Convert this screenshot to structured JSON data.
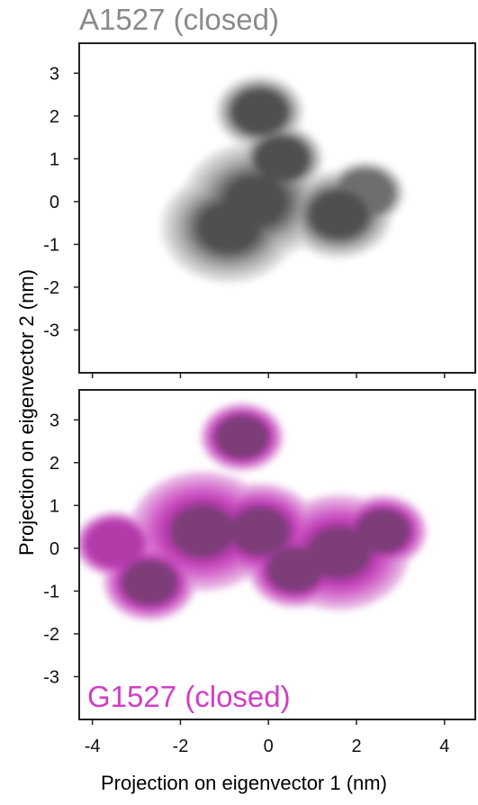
{
  "chart_data": [
    {
      "type": "contour",
      "title": "A1527 (closed)",
      "title_color": "#8a8a8a",
      "xlabel": "Projection on eigenvector 1 (nm)",
      "ylabel": "Projection on eigenvector 2 (nm)",
      "xlim": [
        -4.3,
        4.7
      ],
      "ylim": [
        -4.0,
        3.7
      ],
      "xticks": [
        -4,
        -2,
        0,
        2,
        4
      ],
      "yticks": [
        3,
        2,
        1,
        0,
        -1,
        -2,
        -3
      ],
      "density_centers": [
        {
          "x": -0.3,
          "y": 0.0,
          "weight": 1.0
        },
        {
          "x": -0.9,
          "y": -0.6,
          "weight": 0.9
        },
        {
          "x": 1.6,
          "y": -0.3,
          "weight": 0.6
        },
        {
          "x": -0.2,
          "y": 2.1,
          "weight": 0.4
        },
        {
          "x": 0.3,
          "y": 1.0,
          "weight": 0.35
        },
        {
          "x": 2.2,
          "y": 0.2,
          "weight": 0.3
        }
      ],
      "colors": [
        "#e0e0e0",
        "#c8c8c8",
        "#b0b0b0",
        "#929292",
        "#6e6e6e",
        "#505050"
      ]
    },
    {
      "type": "contour",
      "title": "G1527 (closed)",
      "title_color": "#d23ec6",
      "xlabel": "Projection on eigenvector 1 (nm)",
      "ylabel": "Projection on eigenvector 2 (nm)",
      "xlim": [
        -4.3,
        4.7
      ],
      "ylim": [
        -4.0,
        3.7
      ],
      "xticks": [
        -4,
        -2,
        0,
        2,
        4
      ],
      "yticks": [
        3,
        2,
        1,
        0,
        -1,
        -2,
        -3
      ],
      "density_centers": [
        {
          "x": -1.5,
          "y": 0.4,
          "weight": 1.0
        },
        {
          "x": 1.6,
          "y": -0.1,
          "weight": 0.95
        },
        {
          "x": -0.2,
          "y": 0.4,
          "weight": 0.7
        },
        {
          "x": -2.7,
          "y": -0.8,
          "weight": 0.45
        },
        {
          "x": 0.6,
          "y": -0.5,
          "weight": 0.45
        },
        {
          "x": -0.6,
          "y": 2.6,
          "weight": 0.35
        },
        {
          "x": -3.5,
          "y": 0.1,
          "weight": 0.3
        },
        {
          "x": 2.6,
          "y": 0.4,
          "weight": 0.4
        }
      ],
      "colors": [
        "#e8b6e4",
        "#de90d8",
        "#d46acd",
        "#c94dc0",
        "#b23aaa",
        "#7b3d78"
      ]
    }
  ]
}
